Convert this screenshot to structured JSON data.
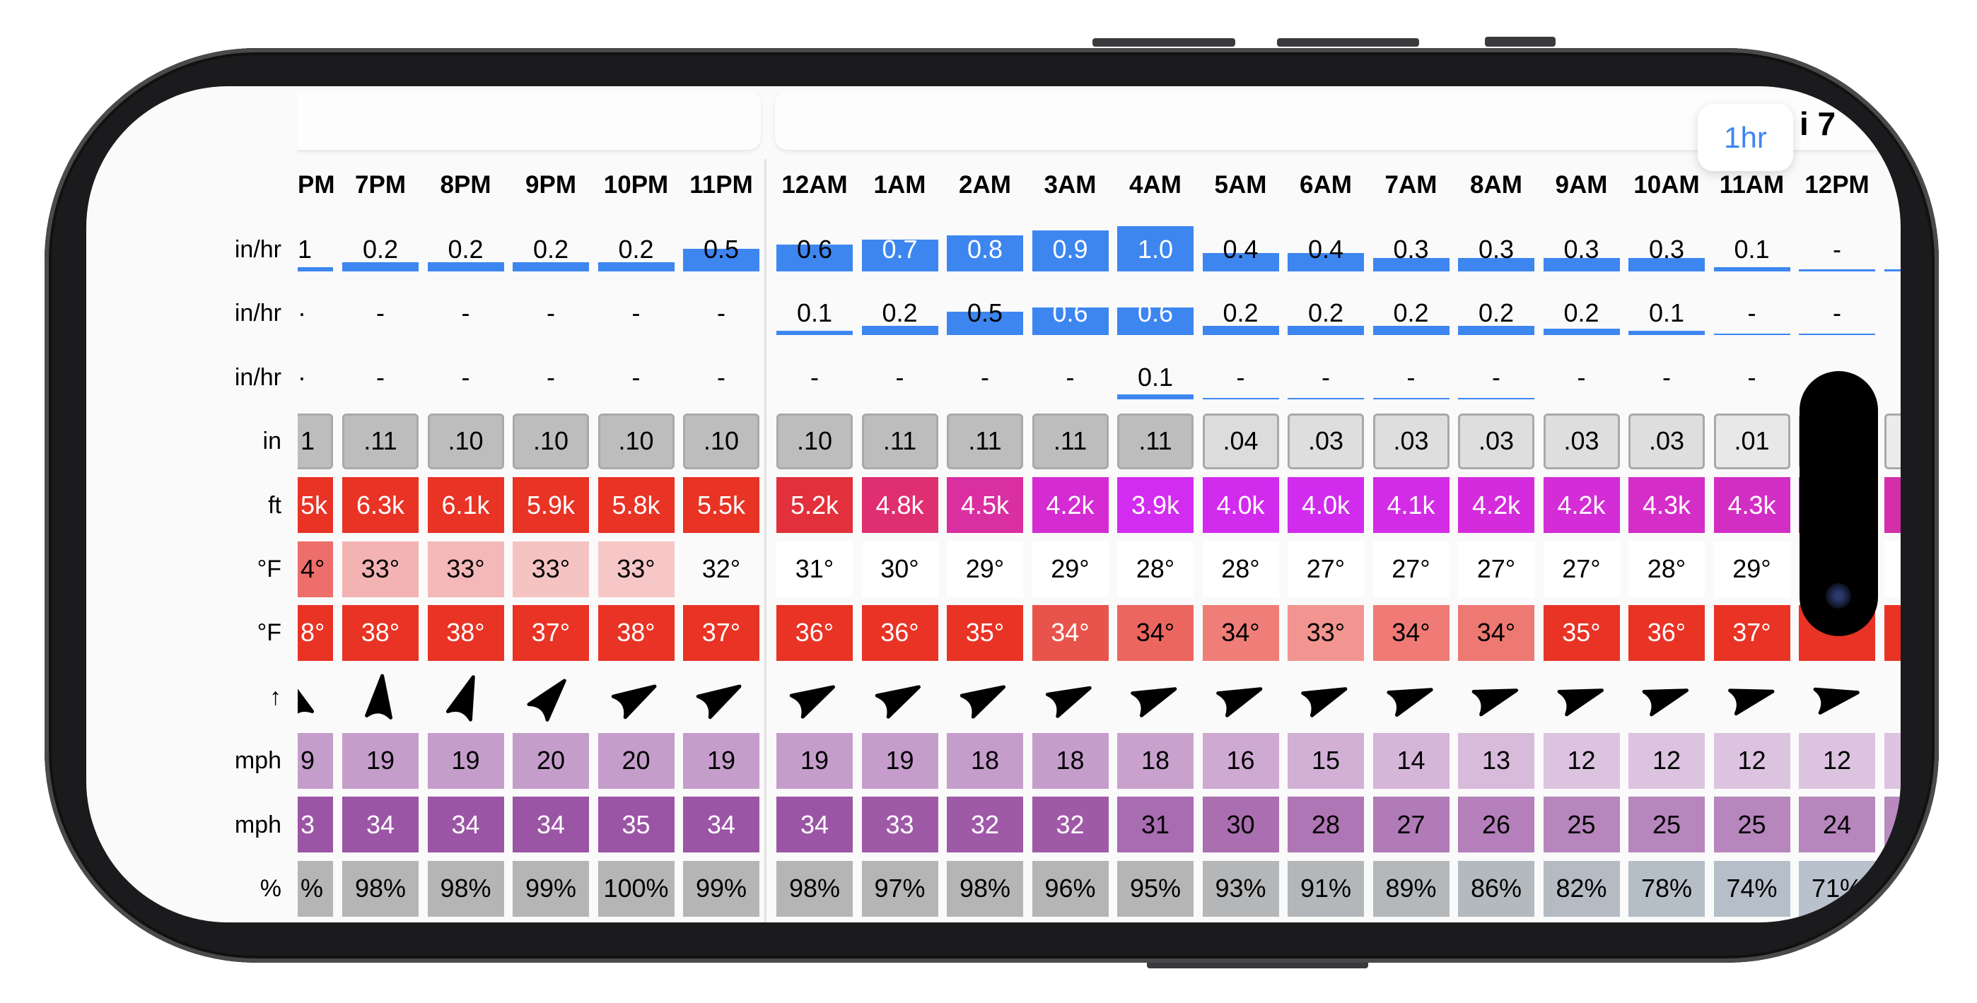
{
  "header": {
    "hour_toggle": "1hr",
    "date_fragment": "i 7"
  },
  "row_labels": [
    "in/hr",
    "in/hr",
    "in/hr",
    "in",
    "ft",
    "°F",
    "°F",
    "↑",
    "mph",
    "mph",
    "%"
  ],
  "hours": [
    "PM",
    "7PM",
    "8PM",
    "9PM",
    "10PM",
    "11PM",
    "12AM",
    "1AM",
    "2AM",
    "3AM",
    "4AM",
    "5AM",
    "6AM",
    "7AM",
    "8AM",
    "9AM",
    "10AM",
    "11AM",
    "12PM",
    ""
  ],
  "bar_rows": [
    {
      "values": [
        "1",
        "0.2",
        "0.2",
        "0.2",
        "0.2",
        "0.5",
        "0.6",
        "0.7",
        "0.8",
        "0.9",
        "1.0",
        "0.4",
        "0.4",
        "0.3",
        "0.3",
        "0.3",
        "0.3",
        "0.1",
        "-",
        ""
      ],
      "levels": [
        0.1,
        0.2,
        0.2,
        0.2,
        0.2,
        0.5,
        0.6,
        0.7,
        0.8,
        0.9,
        1.0,
        0.4,
        0.4,
        0.3,
        0.3,
        0.3,
        0.3,
        0.1,
        0.04,
        0.04
      ]
    },
    {
      "values": [
        "·",
        "-",
        "-",
        "-",
        "-",
        "-",
        "0.1",
        "0.2",
        "0.5",
        "0.6",
        "0.6",
        "0.2",
        "0.2",
        "0.2",
        "0.2",
        "0.2",
        "0.1",
        "-",
        "-",
        ""
      ],
      "levels": [
        0,
        0,
        0,
        0,
        0,
        0,
        0.1,
        0.2,
        0.5,
        0.6,
        0.6,
        0.2,
        0.2,
        0.2,
        0.2,
        0.15,
        0.1,
        0.01,
        0.01,
        0
      ]
    },
    {
      "values": [
        "·",
        "-",
        "-",
        "-",
        "-",
        "-",
        "-",
        "-",
        "-",
        "-",
        "0.1",
        "-",
        "-",
        "-",
        "-",
        "-",
        "-",
        "-",
        "",
        ""
      ],
      "levels": [
        0,
        0,
        0,
        0,
        0,
        0,
        0,
        0,
        0,
        0,
        0.1,
        0.03,
        0.03,
        0.03,
        0.03,
        0,
        0,
        0,
        0,
        0
      ]
    }
  ],
  "cell_rows": [
    {
      "style": "gray",
      "values": [
        "1",
        ".11",
        ".10",
        ".10",
        ".10",
        ".10",
        ".10",
        ".11",
        ".11",
        ".11",
        ".11",
        ".04",
        ".03",
        ".03",
        ".03",
        ".03",
        ".03",
        ".01",
        "",
        ""
      ],
      "colors": [
        "#bdbdbd",
        "#bdbdbd",
        "#bdbdbd",
        "#bdbdbd",
        "#bdbdbd",
        "#bdbdbd",
        "#bdbdbd",
        "#bdbdbd",
        "#bdbdbd",
        "#bdbdbd",
        "#bdbdbd",
        "#dcdcdc",
        "#dedede",
        "#dedede",
        "#dedede",
        "#dedede",
        "#dedede",
        "#e8e8e8",
        "#e8e8e8",
        "#ececec"
      ]
    },
    {
      "style": "fill",
      "values": [
        "5k",
        "6.3k",
        "6.1k",
        "5.9k",
        "5.8k",
        "5.5k",
        "5.2k",
        "4.8k",
        "4.5k",
        "4.2k",
        "3.9k",
        "4.0k",
        "4.0k",
        "4.1k",
        "4.2k",
        "4.2k",
        "4.3k",
        "4.3k",
        "",
        ""
      ],
      "colors": [
        "#e83325",
        "#e83325",
        "#e83325",
        "#e83325",
        "#e83325",
        "#e83325",
        "#e2303c",
        "#df2f70",
        "#da2fa0",
        "#d42cd2",
        "#d22cf0",
        "#d12cee",
        "#d12cee",
        "#d22ce6",
        "#d42cdc",
        "#d42cd6",
        "#d42dc8",
        "#d22ec4",
        "#d22ec4",
        "#d42ea8"
      ]
    },
    {
      "style": "fill",
      "values": [
        "4°",
        "33°",
        "33°",
        "33°",
        "33°",
        "32°",
        "31°",
        "30°",
        "29°",
        "29°",
        "28°",
        "28°",
        "27°",
        "27°",
        "27°",
        "27°",
        "28°",
        "29°",
        "",
        ""
      ],
      "colors": [
        "#ed6e6b",
        "#f4b3b3",
        "#f4b8b8",
        "#f6c3c3",
        "#f7c6c6",
        "#fafafa",
        "#ffffff",
        "#ffffff",
        "#ffffff",
        "#ffffff",
        "#ffffff",
        "#ffffff",
        "#ffffff",
        "#ffffff",
        "#ffffff",
        "#ffffff",
        "#ffffff",
        "#ffffff",
        "#ffffff",
        "#ffffff"
      ]
    },
    {
      "style": "fill",
      "values": [
        "8°",
        "38°",
        "38°",
        "37°",
        "38°",
        "37°",
        "36°",
        "36°",
        "35°",
        "34°",
        "34°",
        "34°",
        "33°",
        "34°",
        "34°",
        "35°",
        "36°",
        "37°",
        "",
        ""
      ],
      "colors": [
        "#e83325",
        "#e83325",
        "#e83325",
        "#e83325",
        "#e83325",
        "#e83325",
        "#e83325",
        "#e83325",
        "#e83325",
        "#e8544b",
        "#ec6660",
        "#ef7d78",
        "#f29590",
        "#f07b76",
        "#ee7872",
        "#e83325",
        "#e83325",
        "#e83325",
        "#e83325",
        "#e83325"
      ]
    },
    {
      "style": "arrows",
      "angles_deg": [
        -20,
        5,
        20,
        40,
        60,
        60,
        62,
        62,
        62,
        65,
        68,
        68,
        68,
        70,
        72,
        72,
        72,
        75,
        78,
        null
      ]
    },
    {
      "style": "fill",
      "values": [
        "9",
        "19",
        "19",
        "20",
        "20",
        "19",
        "19",
        "19",
        "18",
        "18",
        "18",
        "16",
        "15",
        "14",
        "13",
        "12",
        "12",
        "12",
        "12",
        ""
      ],
      "colors": [
        "#c59dcb",
        "#c59dcb",
        "#c59dcb",
        "#c59dcb",
        "#c59dcb",
        "#c59dcb",
        "#c59dcb",
        "#c59dcb",
        "#c59dcb",
        "#c59dcb",
        "#c8a2cd",
        "#cea9d2",
        "#d2b0d6",
        "#d5b5d8",
        "#d8badb",
        "#dcc3e0",
        "#dcc3e0",
        "#dcc3e0",
        "#dcc3e0",
        "#dcc3e0"
      ]
    },
    {
      "style": "fill",
      "values": [
        "3",
        "34",
        "34",
        "34",
        "35",
        "34",
        "34",
        "33",
        "32",
        "32",
        "31",
        "30",
        "28",
        "27",
        "26",
        "25",
        "25",
        "25",
        "24",
        ""
      ],
      "colors": [
        "#9b55a5",
        "#9b55a5",
        "#9b55a5",
        "#9b55a5",
        "#9b55a5",
        "#9b55a5",
        "#9b55a5",
        "#9f5aa7",
        "#9f5aa7",
        "#9f5aa7",
        "#a86cb0",
        "#aa6fb1",
        "#af76b5",
        "#b17bb8",
        "#b47fba",
        "#b786bd",
        "#b786bd",
        "#b786bd",
        "#b786bd",
        "#b98ac0"
      ]
    },
    {
      "style": "fill",
      "values": [
        "%",
        "98%",
        "98%",
        "99%",
        "100%",
        "99%",
        "98%",
        "97%",
        "98%",
        "96%",
        "95%",
        "93%",
        "91%",
        "89%",
        "86%",
        "82%",
        "78%",
        "74%",
        "71%",
        ""
      ],
      "colors": [
        "#b5b5b5",
        "#b5b5b5",
        "#b5b5b5",
        "#b5b5b5",
        "#b5b5b5",
        "#b5b5b5",
        "#b5b5b5",
        "#b5b5b5",
        "#b5b5b5",
        "#b5b5b5",
        "#b5b5b5",
        "#b4b6b7",
        "#b4b7b9",
        "#b4b8bb",
        "#b4b9bd",
        "#b5bbc2",
        "#b5bdc6",
        "#b6bfc9",
        "#b8c1cc",
        "#bcc4cf"
      ]
    }
  ],
  "accent_color": "#3d86f0"
}
